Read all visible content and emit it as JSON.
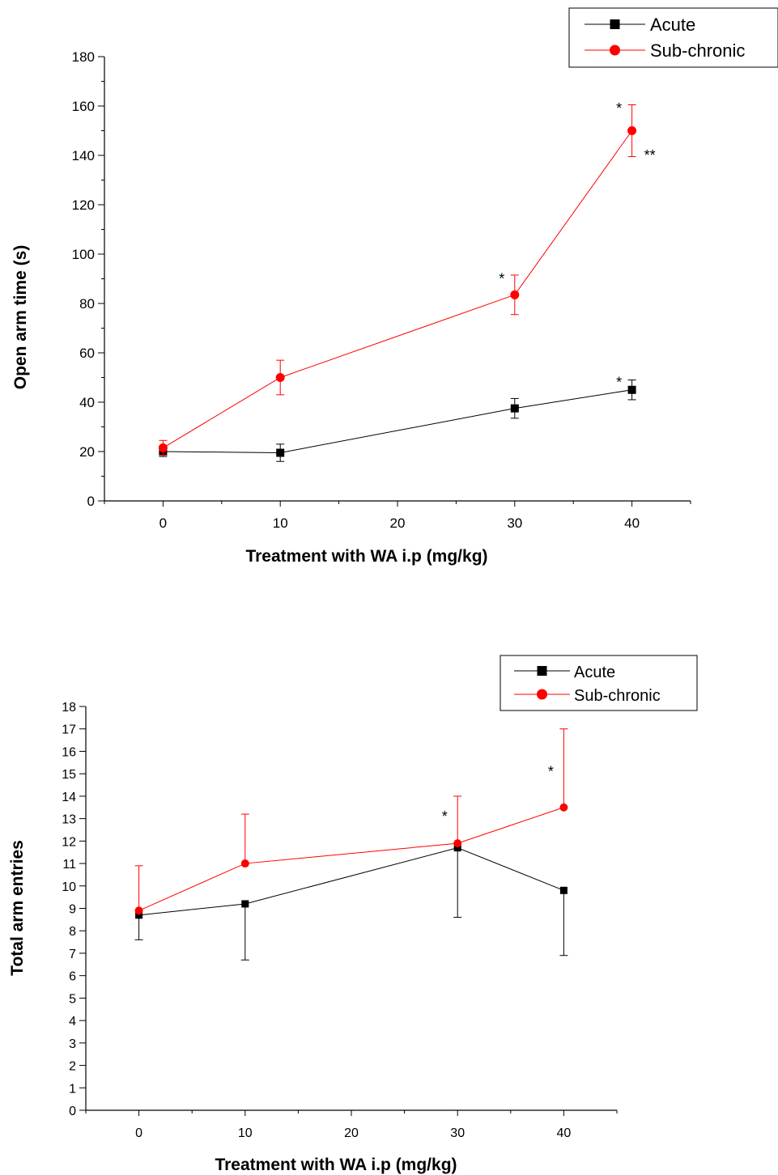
{
  "chart_data": [
    {
      "type": "line",
      "xlabel": "Treatment with WA i.p (mg/kg)",
      "ylabel": "Open arm time (s)",
      "xlim": [
        -5,
        45
      ],
      "ylim": [
        0,
        180
      ],
      "xticks": [
        0,
        10,
        20,
        30,
        40
      ],
      "yticks": [
        0,
        20,
        40,
        60,
        80,
        100,
        120,
        140,
        160,
        180
      ],
      "legend_position": "top-right",
      "series": [
        {
          "name": "Acute",
          "color": "#000000",
          "marker": "square",
          "x": [
            0,
            10,
            30,
            40
          ],
          "y": [
            20,
            19.5,
            37.5,
            45
          ],
          "err": [
            2,
            3.5,
            4,
            4
          ]
        },
        {
          "name": "Sub-chronic",
          "color": "#ff0000",
          "marker": "circle",
          "x": [
            0,
            10,
            30,
            40
          ],
          "y": [
            21.5,
            50,
            83.5,
            150
          ],
          "err": [
            3,
            7,
            8,
            10.5
          ]
        }
      ],
      "annotations": [
        {
          "text": "*",
          "x": 30,
          "y": 91,
          "side": "left"
        },
        {
          "text": "*",
          "x": 40,
          "y": 160,
          "side": "left"
        },
        {
          "text": "**",
          "x": 40,
          "y": 141,
          "side": "right"
        },
        {
          "text": "*",
          "x": 40,
          "y": 49,
          "side": "left"
        }
      ]
    },
    {
      "type": "line",
      "xlabel": "Treatment with WA i.p (mg/kg)",
      "ylabel": "Total arm entries",
      "xlim": [
        -5,
        45
      ],
      "ylim": [
        0,
        18
      ],
      "xticks": [
        0,
        10,
        20,
        30,
        40
      ],
      "yticks": [
        0,
        1,
        2,
        3,
        4,
        5,
        6,
        7,
        8,
        9,
        10,
        11,
        12,
        13,
        14,
        15,
        16,
        17,
        18
      ],
      "legend_position": "top-right",
      "series": [
        {
          "name": "Acute",
          "color": "#000000",
          "marker": "square",
          "x": [
            0,
            10,
            30,
            40
          ],
          "y": [
            8.7,
            9.2,
            11.7,
            9.8
          ],
          "err_lower": [
            1.1,
            2.5,
            3.1,
            2.9
          ]
        },
        {
          "name": "Sub-chronic",
          "color": "#ff0000",
          "marker": "circle",
          "x": [
            0,
            10,
            30,
            40
          ],
          "y": [
            8.9,
            11,
            11.9,
            13.5
          ],
          "err_upper": [
            2,
            2.2,
            2.1,
            3.5
          ]
        }
      ],
      "annotations": [
        {
          "text": "*",
          "x": 30,
          "y": 13.2,
          "side": "left"
        },
        {
          "text": "*",
          "x": 40,
          "y": 15.2,
          "side": "left"
        }
      ]
    }
  ]
}
